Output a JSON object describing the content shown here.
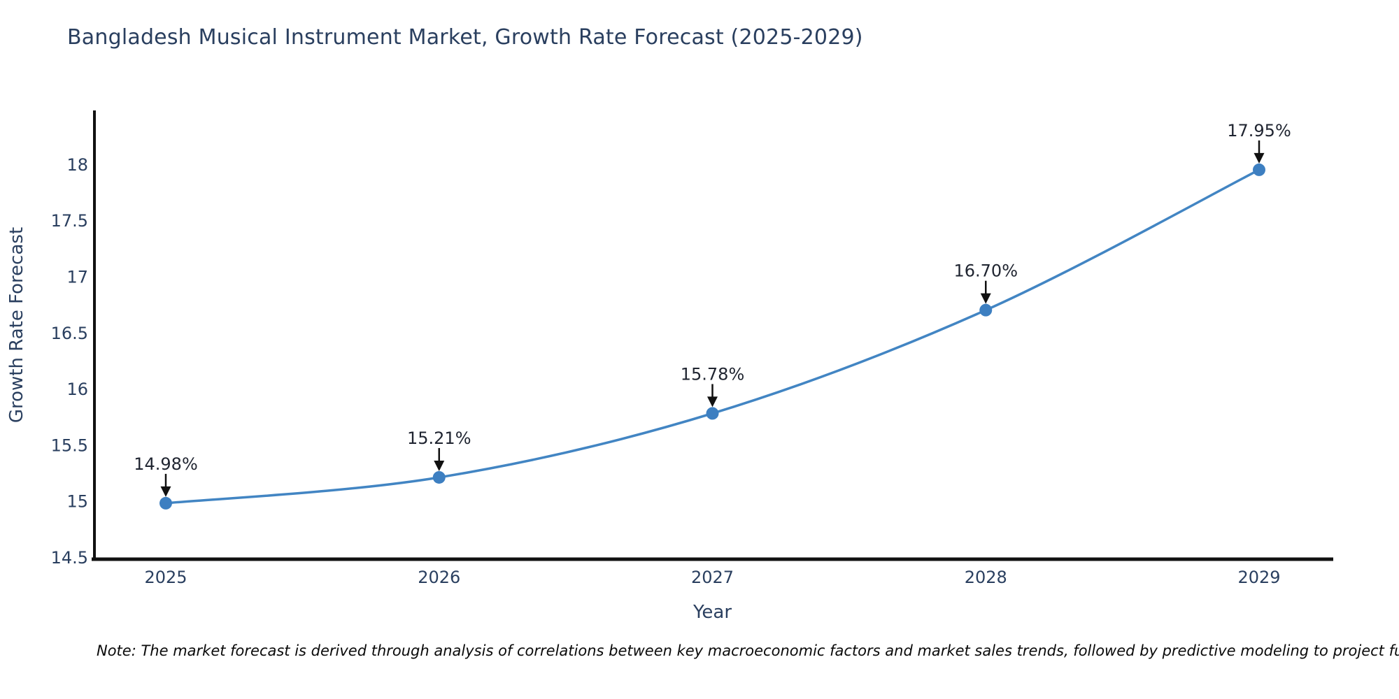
{
  "title": "Bangladesh Musical Instrument Market, Growth Rate Forecast (2025-2029)",
  "note": "Note: The market forecast is derived through analysis of correlations between key macroeconomic factors and market sales trends, followed by predictive modeling to project future sal",
  "chart_data": {
    "type": "line",
    "curve": "spline",
    "title": "Bangladesh Musical Instrument Market, Growth Rate Forecast (2025-2029)",
    "xlabel": "Year",
    "ylabel": "Growth Rate Forecast",
    "x": [
      2025,
      2026,
      2027,
      2028,
      2029
    ],
    "xtick_labels": [
      "2025",
      "2026",
      "2027",
      "2028",
      "2029"
    ],
    "series": [
      {
        "name": "Growth Rate Forecast",
        "values": [
          14.98,
          15.21,
          15.78,
          16.7,
          17.95
        ]
      }
    ],
    "point_labels": [
      "14.98%",
      "15.21%",
      "15.78%",
      "16.70%",
      "17.95%"
    ],
    "ylim": [
      14.5,
      18.47
    ],
    "yticks": [
      14.5,
      15,
      15.5,
      16,
      16.5,
      17,
      17.5,
      18
    ],
    "ytick_labels": [
      "14.5",
      "15",
      "15.5",
      "16",
      "16.5",
      "17",
      "17.5",
      "18"
    ],
    "grid": false,
    "legend_position": "none"
  },
  "colors": {
    "background": "#ffffff",
    "title_text": "#2a3f5f",
    "tick_label": "#2a3f5f",
    "axis_title": "#2a3f5f",
    "axis_line": "#111111",
    "line": "#4285c3",
    "marker": "#3d7fc1",
    "annotation_text": "#1f2430",
    "annotation_arrow": "#111111",
    "note_text": "#0a0a0a"
  }
}
